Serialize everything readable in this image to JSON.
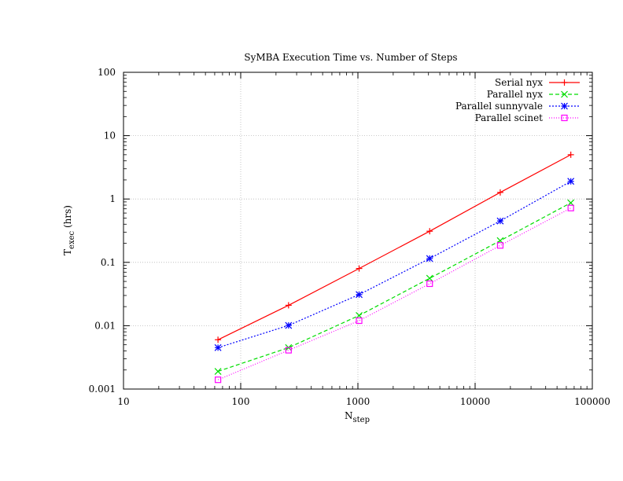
{
  "chart_data": {
    "type": "line",
    "title": "SyMBA Execution Time vs. Number of Steps",
    "xlabel": {
      "main": "N",
      "sub": "step"
    },
    "ylabel": {
      "main": "T",
      "sub": "exec",
      "unit": " (hrs)"
    },
    "xscale": "log",
    "yscale": "log",
    "xlim": [
      10,
      100000
    ],
    "ylim": [
      0.001,
      100
    ],
    "grid": true,
    "legend_position": "top-right",
    "xticks": [
      {
        "value": 10,
        "label": "10"
      },
      {
        "value": 100,
        "label": "100"
      },
      {
        "value": 1000,
        "label": "1000"
      },
      {
        "value": 10000,
        "label": "10000"
      },
      {
        "value": 100000,
        "label": "100000"
      }
    ],
    "yticks": [
      {
        "value": 0.001,
        "label": "0.001"
      },
      {
        "value": 0.01,
        "label": "0.01"
      },
      {
        "value": 0.1,
        "label": "0.1"
      },
      {
        "value": 1,
        "label": "1"
      },
      {
        "value": 10,
        "label": "10"
      },
      {
        "value": 100,
        "label": "100"
      }
    ],
    "x": [
      64,
      256,
      1024,
      4096,
      16384,
      65536
    ],
    "series": [
      {
        "name": "Serial nyx",
        "color": "#ff0000",
        "dash": "solid",
        "marker": "plus",
        "values": [
          0.006,
          0.021,
          0.08,
          0.31,
          1.27,
          5.0
        ]
      },
      {
        "name": "Parallel nyx",
        "color": "#00dd00",
        "dash": "dashed",
        "marker": "cross",
        "values": [
          0.0019,
          0.0045,
          0.0145,
          0.056,
          0.22,
          0.87
        ]
      },
      {
        "name": "Parallel sunnyvale",
        "color": "#0000ff",
        "dash": "dotted",
        "marker": "star",
        "values": [
          0.0045,
          0.0101,
          0.031,
          0.115,
          0.45,
          1.9
        ]
      },
      {
        "name": "Parallel scinet",
        "color": "#ff00ff",
        "dash": "dotted-fine",
        "marker": "square",
        "values": [
          0.0014,
          0.0041,
          0.012,
          0.046,
          0.185,
          0.72
        ]
      }
    ]
  }
}
